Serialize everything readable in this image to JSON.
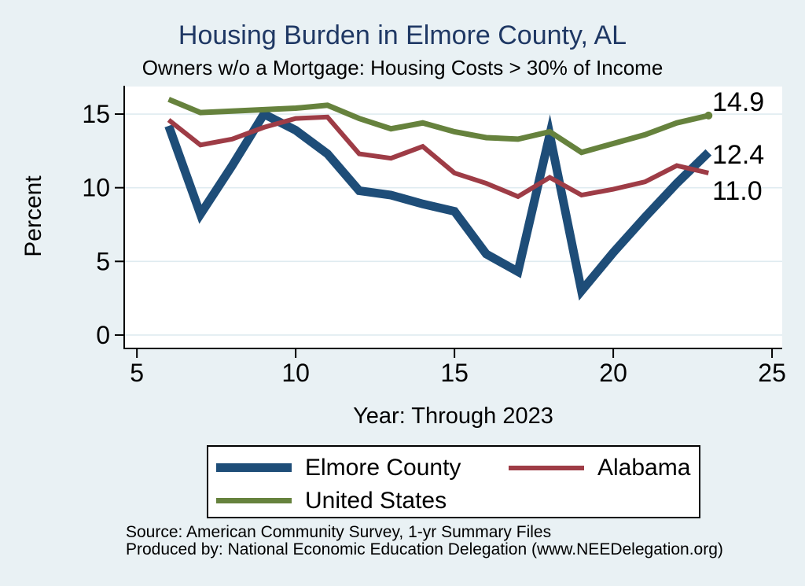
{
  "title": "Housing Burden in Elmore County, AL",
  "subtitle": "Owners w/o a Mortgage: Housing Costs > 30% of Income",
  "chart_data": {
    "type": "line",
    "title": "Housing Burden in Elmore County, AL",
    "subtitle": "Owners w/o a Mortgage: Housing Costs > 30% of Income",
    "xlabel": "Year: Through 2023",
    "ylabel": "Percent",
    "x": [
      6,
      7,
      8,
      9,
      10,
      11,
      12,
      13,
      14,
      15,
      16,
      17,
      18,
      19,
      20,
      21,
      22,
      23
    ],
    "series": [
      {
        "name": "Elmore County",
        "color": "#1e4d78",
        "stroke_width": 11,
        "values": [
          14.2,
          8.2,
          11.5,
          15.0,
          13.9,
          12.3,
          9.8,
          9.5,
          8.9,
          8.4,
          5.5,
          4.3,
          13.6,
          3.0,
          5.6,
          8.0,
          10.3,
          12.4
        ]
      },
      {
        "name": "Alabama",
        "color": "#9e3c46",
        "stroke_width": 6,
        "values": [
          14.6,
          12.9,
          13.3,
          14.1,
          14.7,
          14.8,
          12.3,
          12.0,
          12.8,
          11.0,
          10.3,
          9.4,
          10.7,
          9.5,
          9.9,
          10.4,
          11.5,
          11.0
        ]
      },
      {
        "name": "United States",
        "color": "#66823d",
        "stroke_width": 7,
        "end_marker": true,
        "values": [
          16.0,
          15.1,
          15.2,
          15.3,
          15.4,
          15.6,
          14.7,
          14.0,
          14.4,
          13.8,
          13.4,
          13.3,
          13.8,
          12.4,
          13.0,
          13.6,
          14.4,
          14.9
        ]
      }
    ],
    "draw_order": [
      "Elmore County",
      "Alabama",
      "United States"
    ],
    "xticks": [
      5,
      10,
      15,
      20,
      25
    ],
    "yticks": [
      0,
      5,
      10,
      15
    ],
    "xlim": [
      4.6,
      25.32
    ],
    "ylim": [
      -0.91,
      16.87
    ],
    "grid": "horizontal",
    "legend_position": "bottom",
    "end_labels": [
      {
        "text": "14.9",
        "series": "United States"
      },
      {
        "text": "12.4",
        "series": "Elmore County"
      },
      {
        "text": "11.0",
        "series": "Alabama"
      }
    ]
  },
  "legend": {
    "items": [
      "Elmore County",
      "Alabama",
      "United States"
    ]
  },
  "footer": {
    "line1": "Source: American Community Survey, 1-yr Summary Files",
    "line2": "Produced by: National Economic Education Delegation (www.NEEDelegation.org)"
  },
  "colors": {
    "background": "#e9f1f4",
    "plot_background": "#ffffff",
    "gridline": "#dfebf0",
    "axis": "#000000",
    "title": "#1f3864"
  }
}
